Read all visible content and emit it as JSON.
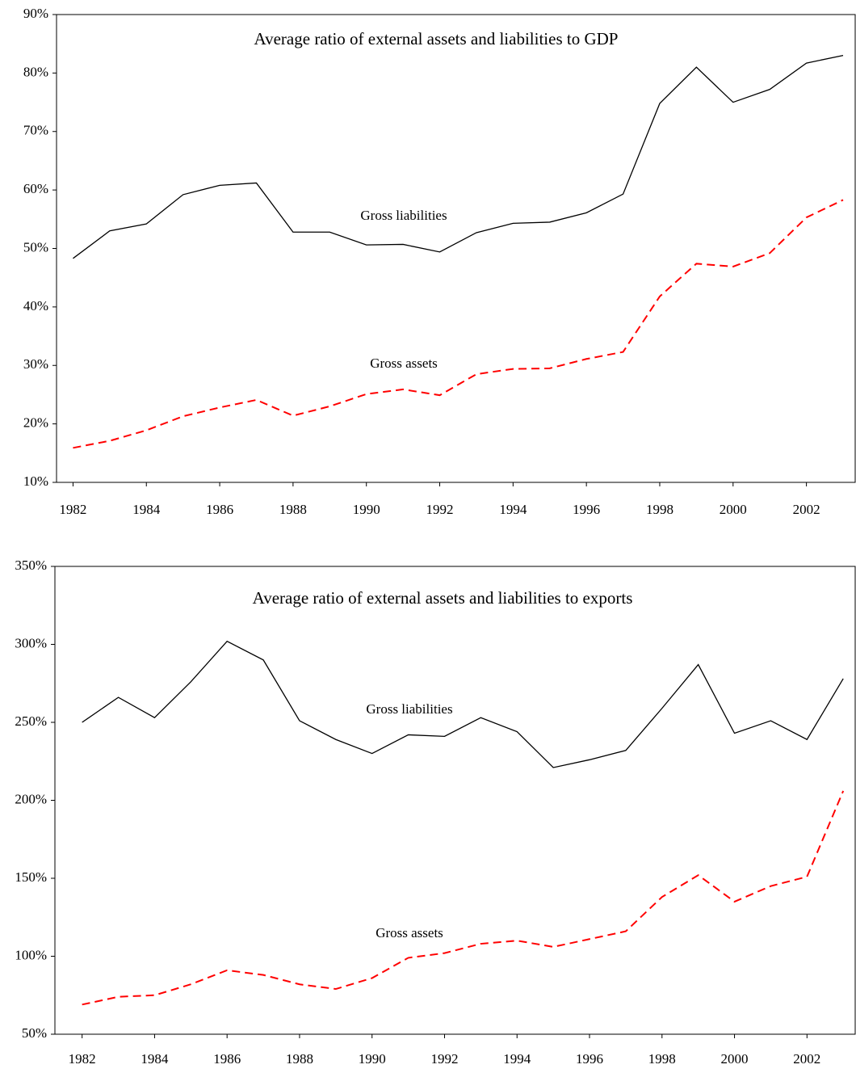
{
  "chart_data": [
    {
      "type": "line",
      "title": "Average ratio of external assets and liabilities to GDP",
      "x": [
        1982,
        1983,
        1984,
        1985,
        1986,
        1987,
        1988,
        1989,
        1990,
        1991,
        1992,
        1993,
        1994,
        1995,
        1996,
        1997,
        1998,
        1999,
        2000,
        2001,
        2002,
        2003
      ],
      "series": [
        {
          "name": "Gross liabilities",
          "color": "#000000",
          "linestyle": "solid",
          "values": [
            48.3,
            53,
            54.2,
            59.2,
            60.8,
            61.2,
            52.8,
            52.8,
            50.6,
            50.7,
            49.4,
            52.7,
            54.3,
            54.5,
            56.1,
            59.3,
            74.8,
            81,
            75,
            77.2,
            81.7,
            83
          ]
        },
        {
          "name": "Gross assets",
          "color": "#ff0000",
          "linestyle": "dashed",
          "values": [
            15.9,
            17.1,
            18.9,
            21.3,
            22.8,
            24.1,
            21.4,
            23,
            25.1,
            25.9,
            24.9,
            28.5,
            29.4,
            29.5,
            31.1,
            32.3,
            41.8,
            47.4,
            46.9,
            49.2,
            55.3,
            58.3
          ]
        }
      ],
      "xlim": [
        1981.55,
        2003.33
      ],
      "xticks": [
        1982,
        1984,
        1986,
        1988,
        1990,
        1992,
        1994,
        1996,
        1998,
        2000,
        2002
      ],
      "ylim": [
        10,
        90
      ],
      "yticks": [
        {
          "value": 10,
          "label": "10%"
        },
        {
          "value": 20,
          "label": "20%"
        },
        {
          "value": 30,
          "label": "30%"
        },
        {
          "value": 40,
          "label": "40%"
        },
        {
          "value": 50,
          "label": "50%"
        },
        {
          "value": 60,
          "label": "60%"
        },
        {
          "value": 70,
          "label": "70%"
        },
        {
          "value": 80,
          "label": "80%"
        },
        {
          "value": 90,
          "label": "90%"
        }
      ],
      "grid": false
    },
    {
      "type": "line",
      "title": "Average ratio of external assets and liabilities to exports",
      "x": [
        1982,
        1983,
        1984,
        1985,
        1986,
        1987,
        1988,
        1989,
        1990,
        1991,
        1992,
        1993,
        1994,
        1995,
        1996,
        1997,
        1998,
        1999,
        2000,
        2001,
        2002,
        2003
      ],
      "series": [
        {
          "name": "Gross liabilities",
          "color": "#000000",
          "linestyle": "solid",
          "values": [
            250,
            266,
            253,
            276,
            302,
            290,
            251,
            239,
            230,
            242,
            241,
            253,
            244,
            221,
            226,
            232,
            259,
            287,
            243,
            251,
            239,
            278
          ]
        },
        {
          "name": "Gross assets",
          "color": "#ff0000",
          "linestyle": "dashed",
          "values": [
            69,
            74,
            75,
            82,
            91,
            88,
            82,
            79,
            86,
            99,
            102,
            108,
            110,
            106,
            111,
            116,
            138,
            152,
            135,
            145,
            151,
            206
          ]
        }
      ],
      "xlim": [
        1981.25,
        2003.33
      ],
      "xticks": [
        1982,
        1984,
        1986,
        1988,
        1990,
        1992,
        1994,
        1996,
        1998,
        2000,
        2002
      ],
      "ylim": [
        50,
        350
      ],
      "yticks": [
        {
          "value": 50,
          "label": "50%"
        },
        {
          "value": 100,
          "label": "100%"
        },
        {
          "value": 150,
          "label": "150%"
        },
        {
          "value": 200,
          "label": "200%"
        },
        {
          "value": 250,
          "label": "250%"
        },
        {
          "value": 300,
          "label": "300%"
        },
        {
          "value": 350,
          "label": "350%"
        }
      ],
      "grid": false
    }
  ]
}
